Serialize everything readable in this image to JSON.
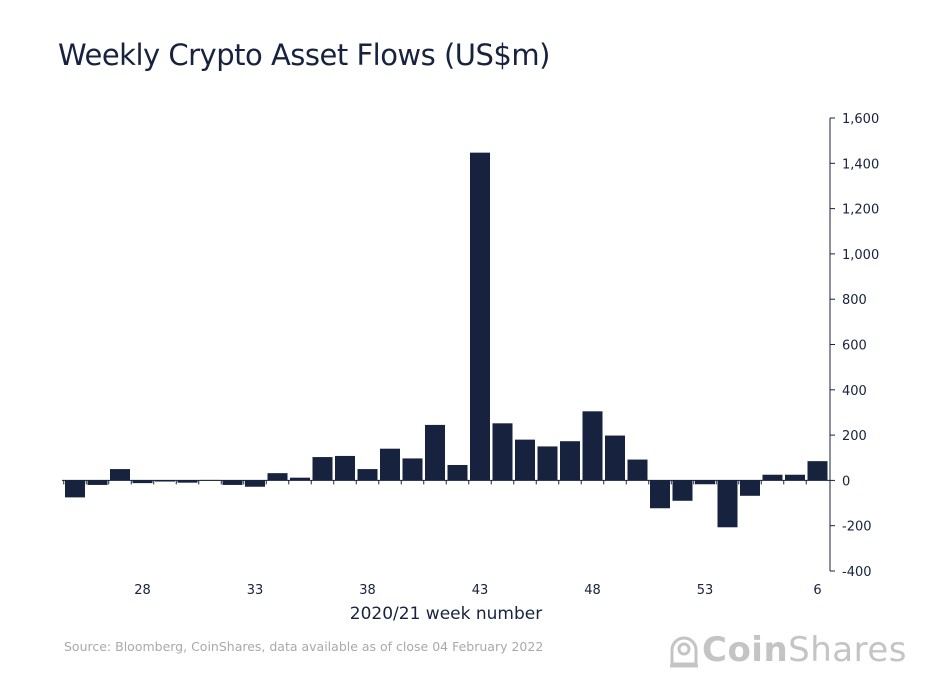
{
  "chart_data": {
    "type": "bar",
    "title": "Weekly Crypto Asset Flows (US$m)",
    "xlabel": "2020/21 week number",
    "ylabel": "",
    "ylim": [
      -400,
      1600
    ],
    "yticks": [
      -400,
      -200,
      0,
      200,
      400,
      600,
      800,
      1000,
      1200,
      1400,
      1600
    ],
    "ytick_labels": [
      "-400",
      "-200",
      "0",
      "200",
      "400",
      "600",
      "800",
      "1,000",
      "1,200",
      "1,400",
      "1,600"
    ],
    "y_axis_side": "right",
    "grid": false,
    "categories": [
      "25",
      "26",
      "27",
      "28",
      "29",
      "30",
      "31",
      "32",
      "33",
      "34",
      "35",
      "36",
      "37",
      "38",
      "39",
      "40",
      "41",
      "42",
      "43",
      "44",
      "45",
      "46",
      "47",
      "48",
      "49",
      "50",
      "51",
      "52",
      "53",
      "2",
      "3",
      "4",
      "5",
      "6"
    ],
    "xtick_labels": [
      "28",
      "33",
      "38",
      "43",
      "48",
      "53",
      "6"
    ],
    "values": [
      -75,
      -20,
      50,
      -12,
      -5,
      -10,
      2,
      -20,
      -28,
      32,
      12,
      103,
      108,
      50,
      140,
      97,
      245,
      68,
      1447,
      252,
      180,
      150,
      173,
      305,
      198,
      92,
      -123,
      -90,
      -17,
      -207,
      -68,
      25,
      25,
      85
    ],
    "color": "#17223f"
  },
  "source": "Source: Bloomberg, CoinShares, data available as of close 04 February 2022",
  "logo": {
    "bold": "Coin",
    "regular": "Shares",
    "color": "#c4c4c4"
  }
}
